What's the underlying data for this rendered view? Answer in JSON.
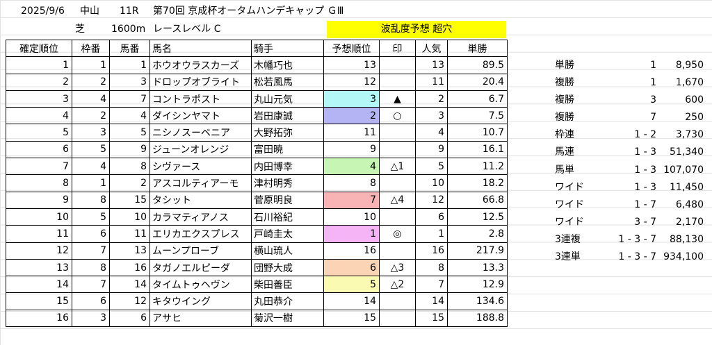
{
  "header": {
    "date": "2025/9/6",
    "venue": "中山",
    "race_no": "11R",
    "race_title": "第70回 京成杯オータムハンデキャップ ＧⅢ",
    "surface": "芝",
    "distance": "1600m",
    "race_level": "レースレベル C",
    "prediction_label": "波乱度予想 超穴"
  },
  "columns": [
    "確定順位",
    "枠番",
    "馬番",
    "馬名",
    "騎手",
    "予想順位",
    "印",
    "人気",
    "単勝"
  ],
  "rows": [
    {
      "rank": "1",
      "waku": "1",
      "uma": "1",
      "name": "ホウオウラスカーズ",
      "jockey": "木幡巧也",
      "pred": "13",
      "mark": "",
      "pop": "13",
      "odds": "89.5",
      "color": ""
    },
    {
      "rank": "2",
      "waku": "2",
      "uma": "3",
      "name": "ドロップオブライト",
      "jockey": "松若風馬",
      "pred": "12",
      "mark": "",
      "pop": "11",
      "odds": "20.4",
      "color": ""
    },
    {
      "rank": "3",
      "waku": "4",
      "uma": "7",
      "name": "コントラポスト",
      "jockey": "丸山元気",
      "pred": "3",
      "mark": "▲",
      "pop": "2",
      "odds": "6.7",
      "color": "#b3f7f7"
    },
    {
      "rank": "4",
      "waku": "2",
      "uma": "4",
      "name": "ダイシンヤマト",
      "jockey": "岩田康誠",
      "pred": "2",
      "mark": "○",
      "pop": "3",
      "odds": "7.5",
      "color": "#b4b4f4"
    },
    {
      "rank": "5",
      "waku": "3",
      "uma": "5",
      "name": "ニシノスーベニア",
      "jockey": "大野拓弥",
      "pred": "11",
      "mark": "",
      "pop": "4",
      "odds": "10.7",
      "color": ""
    },
    {
      "rank": "6",
      "waku": "5",
      "uma": "9",
      "name": "ジューンオレンジ",
      "jockey": "富田暁",
      "pred": "9",
      "mark": "",
      "pop": "9",
      "odds": "16.1",
      "color": ""
    },
    {
      "rank": "7",
      "waku": "4",
      "uma": "8",
      "name": "シヴァース",
      "jockey": "内田博幸",
      "pred": "4",
      "mark": "△1",
      "pop": "5",
      "odds": "11.2",
      "color": "#c6f5b4"
    },
    {
      "rank": "8",
      "waku": "1",
      "uma": "2",
      "name": "アスコルティアーモ",
      "jockey": "津村明秀",
      "pred": "8",
      "mark": "",
      "pop": "10",
      "odds": "18.2",
      "color": ""
    },
    {
      "rank": "9",
      "waku": "8",
      "uma": "15",
      "name": "タシット",
      "jockey": "菅原明良",
      "pred": "7",
      "mark": "△4",
      "pop": "12",
      "odds": "66.8",
      "color": "#f8b4b4"
    },
    {
      "rank": "10",
      "waku": "5",
      "uma": "10",
      "name": "カラマティアノス",
      "jockey": "石川裕紀",
      "pred": "10",
      "mark": "",
      "pop": "6",
      "odds": "12.5",
      "color": ""
    },
    {
      "rank": "11",
      "waku": "6",
      "uma": "11",
      "name": "エリカエクスプレス",
      "jockey": "戸崎圭太",
      "pred": "1",
      "mark": "◎",
      "pop": "1",
      "odds": "2.8",
      "color": "#f5b4f5"
    },
    {
      "rank": "12",
      "waku": "7",
      "uma": "13",
      "name": "ムーンプローブ",
      "jockey": "横山琉人",
      "pred": "16",
      "mark": "",
      "pop": "16",
      "odds": "217.9",
      "color": ""
    },
    {
      "rank": "13",
      "waku": "8",
      "uma": "16",
      "name": "タガノエルピーダ",
      "jockey": "団野大成",
      "pred": "6",
      "mark": "△3",
      "pop": "8",
      "odds": "13.3",
      "color": "#fbd3b5"
    },
    {
      "rank": "14",
      "waku": "7",
      "uma": "14",
      "name": "タイムトゥヘヴン",
      "jockey": "柴田善臣",
      "pred": "5",
      "mark": "△2",
      "pop": "7",
      "odds": "12.9",
      "color": "#fbfab3"
    },
    {
      "rank": "15",
      "waku": "6",
      "uma": "12",
      "name": "キタウイング",
      "jockey": "丸田恭介",
      "pred": "14",
      "mark": "",
      "pop": "14",
      "odds": "134.6",
      "color": ""
    },
    {
      "rank": "16",
      "waku": "3",
      "uma": "6",
      "name": "アサヒ",
      "jockey": "菊沢一樹",
      "pred": "15",
      "mark": "",
      "pop": "15",
      "odds": "188.8",
      "color": ""
    }
  ],
  "payouts": [
    {
      "type": "単勝",
      "key": "1",
      "value": "8,950"
    },
    {
      "type": "複勝",
      "key": "1",
      "value": "1,670"
    },
    {
      "type": "複勝",
      "key": "3",
      "value": "600"
    },
    {
      "type": "複勝",
      "key": "7",
      "value": "250"
    },
    {
      "type": "枠連",
      "key": "1 - 2",
      "value": "3,730"
    },
    {
      "type": "馬連",
      "key": "1 - 3",
      "value": "51,340"
    },
    {
      "type": "馬単",
      "key": "1 - 3",
      "value": "107,070"
    },
    {
      "type": "ワイド",
      "key": "1 - 3",
      "value": "11,450"
    },
    {
      "type": "ワイド",
      "key": "1 - 7",
      "value": "6,480"
    },
    {
      "type": "ワイド",
      "key": "3 - 7",
      "value": "2,170"
    },
    {
      "type": "3連複",
      "key": "1 - 3 - 7",
      "value": "88,130"
    },
    {
      "type": "3連単",
      "key": "1 - 3 - 7",
      "value": "934,100"
    }
  ],
  "colors": {
    "highlight_band": "#ffff00",
    "gridline": "#e1e1e1",
    "border": "#000000"
  }
}
